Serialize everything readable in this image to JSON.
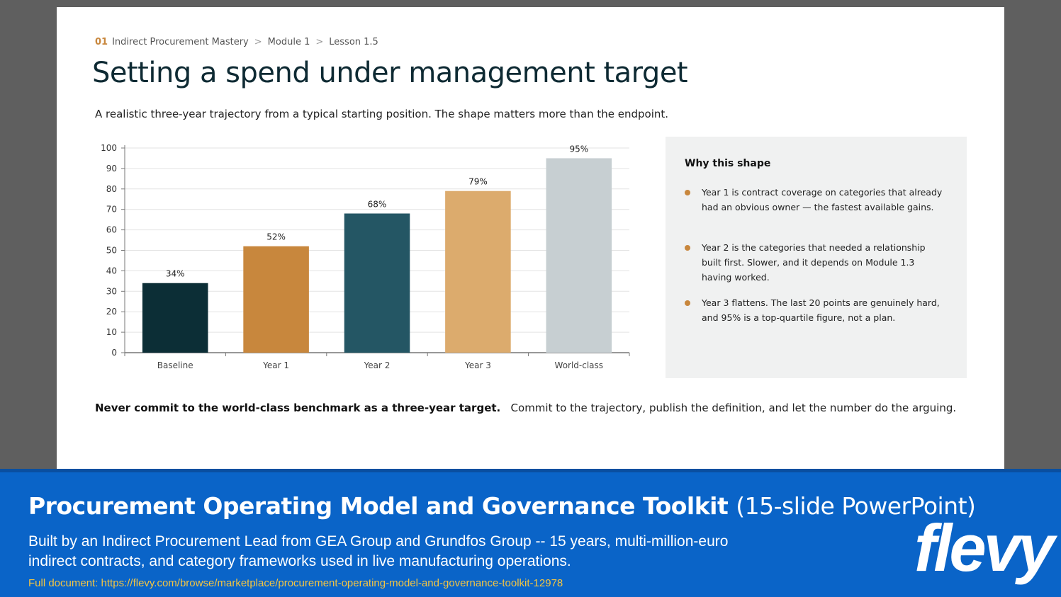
{
  "breadcrumb": {
    "number": "01",
    "items": [
      "Indirect Procurement Mastery",
      "Module 1",
      "Lesson 1.5"
    ],
    "separator": ">"
  },
  "slide": {
    "title": "Setting a spend under management target",
    "subtitle": "A realistic three-year trajectory from a typical starting position. The shape matters more than the endpoint."
  },
  "chart_data": {
    "type": "bar",
    "categories": [
      "Baseline",
      "Year 1",
      "Year 2",
      "Year 3",
      "World-class"
    ],
    "values": [
      34,
      52,
      68,
      79,
      95
    ],
    "data_labels": [
      "34%",
      "52%",
      "68%",
      "79%",
      "95%"
    ],
    "colors": [
      "#0c2e36",
      "#c8873d",
      "#245664",
      "#dcab6d",
      "#c7cfd2"
    ],
    "ylim": [
      0,
      100
    ],
    "yticks": [
      0,
      10,
      20,
      30,
      40,
      50,
      60,
      70,
      80,
      90,
      100
    ],
    "grid": true
  },
  "sidepanel": {
    "title": "Why this shape",
    "bullets": [
      "Year 1 is contract coverage on categories that already had an obvious owner — the fastest available gains.",
      "Year 2 is the categories that needed a relationship built first. Slower, and it depends on Module 1.3 having worked.",
      "Year 3 flattens. The last 20 points are genuinely hard, and 95% is a top-quartile figure, not a plan."
    ]
  },
  "takeaway": {
    "bold": "Never commit to the world-class benchmark as a three-year target.",
    "rest": "Commit to the trajectory, publish the definition, and let the number do the arguing."
  },
  "banner": {
    "title": "Procurement Operating Model and Governance Toolkit",
    "title_suffix": "(15-slide PowerPoint)",
    "description": "Built by an Indirect Procurement Lead from GEA Group and Grundfos Group -- 15 years, multi-million-euro indirect contracts, and category frameworks used in live manufacturing operations.",
    "link": "Full document: https://flevy.com/browse/marketplace/procurement-operating-model-and-governance-toolkit-12978",
    "logo": "flevy"
  }
}
